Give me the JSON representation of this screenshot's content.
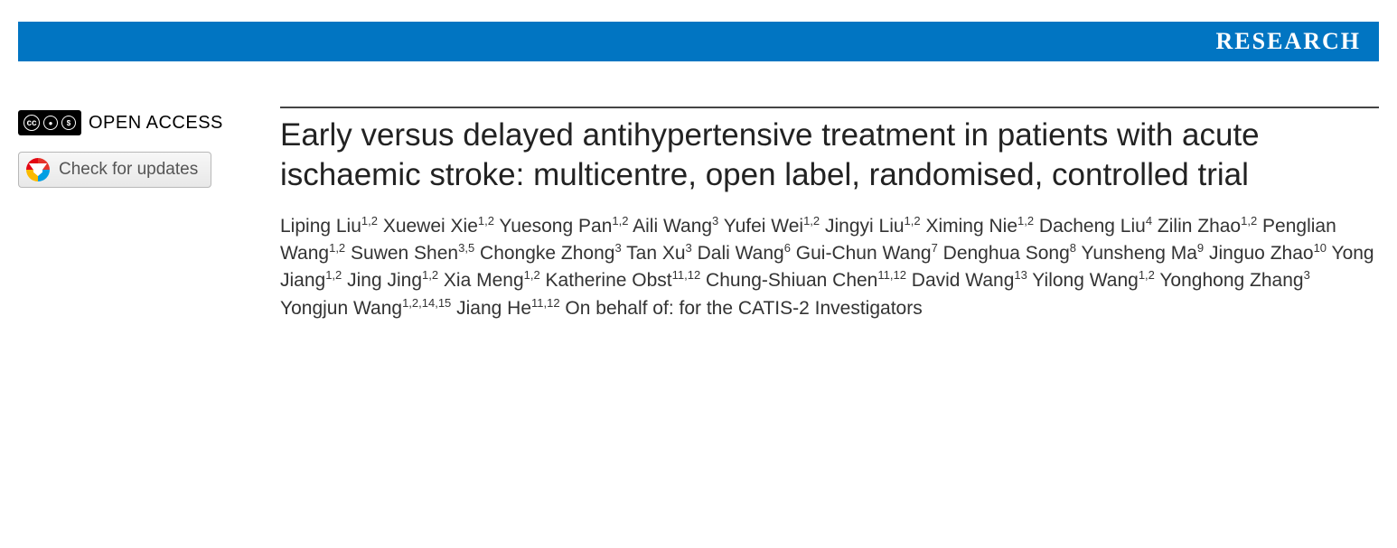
{
  "banner": {
    "background_color": "#0175c2",
    "text_color": "#ffffff",
    "label": "RESEARCH"
  },
  "open_access": {
    "cc_symbols": [
      "cc",
      "BY",
      "NC"
    ],
    "label": "OPEN ACCESS"
  },
  "updates_button": {
    "label": "Check for updates"
  },
  "article": {
    "title": "Early versus delayed antihypertensive treatment in patients with acute ischaemic stroke: multicentre, open label, randomised, controlled trial",
    "authors": [
      {
        "name": "Liping Liu",
        "affil": "1,2"
      },
      {
        "name": "Xuewei Xie",
        "affil": "1,2"
      },
      {
        "name": "Yuesong Pan",
        "affil": "1,2"
      },
      {
        "name": "Aili Wang",
        "affil": "3"
      },
      {
        "name": "Yufei Wei",
        "affil": "1,2"
      },
      {
        "name": "Jingyi Liu",
        "affil": "1,2"
      },
      {
        "name": "Ximing Nie",
        "affil": "1,2"
      },
      {
        "name": "Dacheng Liu",
        "affil": "4"
      },
      {
        "name": "Zilin Zhao",
        "affil": "1,2"
      },
      {
        "name": "Penglian Wang",
        "affil": "1,2"
      },
      {
        "name": "Suwen Shen",
        "affil": "3,5"
      },
      {
        "name": "Chongke Zhong",
        "affil": "3"
      },
      {
        "name": "Tan Xu",
        "affil": "3"
      },
      {
        "name": "Dali Wang",
        "affil": "6"
      },
      {
        "name": "Gui-Chun Wang",
        "affil": "7"
      },
      {
        "name": "Denghua Song",
        "affil": "8"
      },
      {
        "name": "Yunsheng Ma",
        "affil": "9"
      },
      {
        "name": "Jinguo Zhao",
        "affil": "10"
      },
      {
        "name": "Yong Jiang",
        "affil": "1,2"
      },
      {
        "name": "Jing Jing",
        "affil": "1,2"
      },
      {
        "name": "Xia Meng",
        "affil": "1,2"
      },
      {
        "name": "Katherine Obst",
        "affil": "11,12"
      },
      {
        "name": "Chung-Shiuan Chen",
        "affil": "11,12"
      },
      {
        "name": "David Wang",
        "affil": "13"
      },
      {
        "name": "Yilong Wang",
        "affil": "1,2"
      },
      {
        "name": "Yonghong Zhang",
        "affil": "3"
      },
      {
        "name": "Yongjun Wang",
        "affil": "1,2,14,15"
      },
      {
        "name": "Jiang He",
        "affil": "11,12"
      }
    ],
    "behalf": "On behalf of: for the CATIS-2 Investigators"
  }
}
